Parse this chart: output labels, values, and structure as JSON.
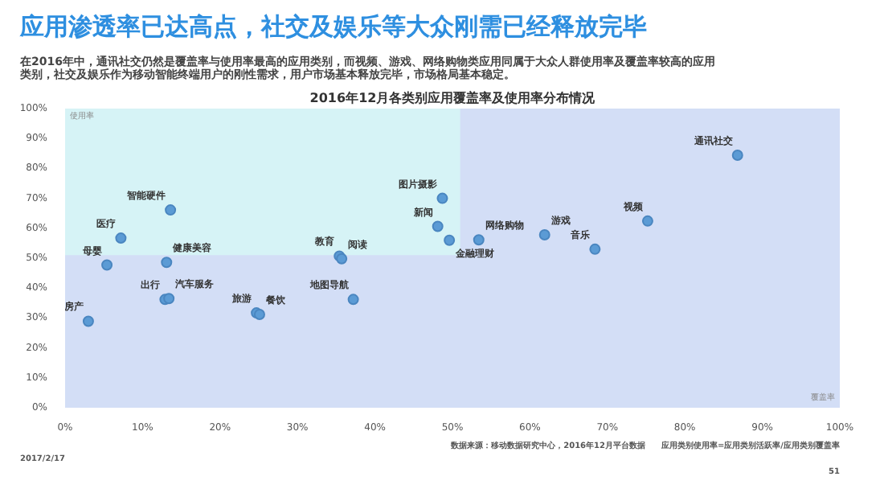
{
  "chart_data": {
    "type": "scatter",
    "title": "应用渗透率已达高点，社交及娱乐等大众刚需已经释放完毕",
    "subtitle": "在2016年中，通讯社交仍然是覆盖率与使用率最高的应用类别，而视频、游戏、网络购物类应用同属于大众人群使用率及覆盖率较高的应用类别，社交及娱乐作为移动智能终端用户的刚性需求，用户市场基本释放完毕，市场格局基本稳定。",
    "xlabel": "覆盖率",
    "ylabel": "使用率",
    "x": [
      3.0,
      5.4,
      7.2,
      13.6,
      13.1,
      12.9,
      13.4,
      24.7,
      25.1,
      35.4,
      35.7,
      37.2,
      48.7,
      48.1,
      49.6,
      53.4,
      61.9,
      68.4,
      75.2,
      86.8
    ],
    "series": [
      {
        "color": "#5b9bd5",
        "values": [
          28.9,
          47.7,
          56.7,
          66.1,
          48.6,
          36.2,
          36.5,
          31.7,
          31.2,
          50.7,
          49.8,
          36.2,
          70.0,
          60.6,
          56.0,
          56.1,
          57.8,
          53.0,
          62.4,
          84.4
        ]
      }
    ],
    "annotations": [
      {
        "text": "房产",
        "x": 3.0,
        "y": 28.9
      },
      {
        "text": "母婴",
        "x": 5.4,
        "y": 47.7
      },
      {
        "text": "医疗",
        "x": 7.2,
        "y": 56.7
      },
      {
        "text": "智能硬件",
        "x": 13.6,
        "y": 66.1
      },
      {
        "text": "健康美容",
        "x": 13.1,
        "y": 48.6
      },
      {
        "text": "出行",
        "x": 12.9,
        "y": 36.2
      },
      {
        "text": "汽车服务",
        "x": 13.4,
        "y": 36.5
      },
      {
        "text": "旅游",
        "x": 24.7,
        "y": 31.7
      },
      {
        "text": "餐饮",
        "x": 25.1,
        "y": 31.2
      },
      {
        "text": "教育",
        "x": 35.4,
        "y": 50.7
      },
      {
        "text": "阅读",
        "x": 35.7,
        "y": 49.8
      },
      {
        "text": "地图导航",
        "x": 37.2,
        "y": 36.2
      },
      {
        "text": "图片摄影",
        "x": 48.7,
        "y": 70.0
      },
      {
        "text": "新闻",
        "x": 48.1,
        "y": 60.6
      },
      {
        "text": "金融理财",
        "x": 49.6,
        "y": 56.0
      },
      {
        "text": "网络购物",
        "x": 53.4,
        "y": 56.1
      },
      {
        "text": "游戏",
        "x": 61.9,
        "y": 57.8
      },
      {
        "text": "音乐",
        "x": 68.4,
        "y": 53.0
      },
      {
        "text": "视频",
        "x": 75.2,
        "y": 62.4
      },
      {
        "text": "通讯社交",
        "x": 86.8,
        "y": 84.4
      },
      "2016年12月各类别应用覆盖率及使用率分布情况",
      "数据来源：移动数据研究中心，2016年12月平台数据　　应用类别使用率=应用类别活跃率/应用类别覆盖率",
      "2017/2/17",
      "51"
    ],
    "bands": [
      {
        "axis": "y",
        "from": 0,
        "to": 51,
        "color": "#d3def6"
      },
      {
        "axis": "x",
        "from": 51,
        "to": 100,
        "color": "#d3def6"
      }
    ],
    "xlim": [
      0,
      100
    ],
    "ylim": [
      0,
      100
    ],
    "xticks": [
      {
        "value": 0,
        "label": "0%"
      },
      {
        "value": 10,
        "label": "10%"
      },
      {
        "value": 20,
        "label": "20%"
      },
      {
        "value": 30,
        "label": "30%"
      },
      {
        "value": 40,
        "label": "40%"
      },
      {
        "value": 50,
        "label": "50%"
      },
      {
        "value": 60,
        "label": "60%"
      },
      {
        "value": 70,
        "label": "70%"
      },
      {
        "value": 80,
        "label": "80%"
      },
      {
        "value": 90,
        "label": "90%"
      },
      {
        "value": 100,
        "label": "100%"
      }
    ],
    "yticks": [
      {
        "value": 0,
        "label": "0%"
      },
      {
        "value": 10,
        "label": "10%"
      },
      {
        "value": 20,
        "label": "20%"
      },
      {
        "value": 30,
        "label": "30%"
      },
      {
        "value": 40,
        "label": "40%"
      },
      {
        "value": 50,
        "label": "50%"
      },
      {
        "value": 60,
        "label": "60%"
      },
      {
        "value": 70,
        "label": "70%"
      },
      {
        "value": 80,
        "label": "80%"
      },
      {
        "value": 90,
        "label": "90%"
      },
      {
        "value": 100,
        "label": "100%"
      }
    ],
    "marker": "circle",
    "grid": false
  }
}
